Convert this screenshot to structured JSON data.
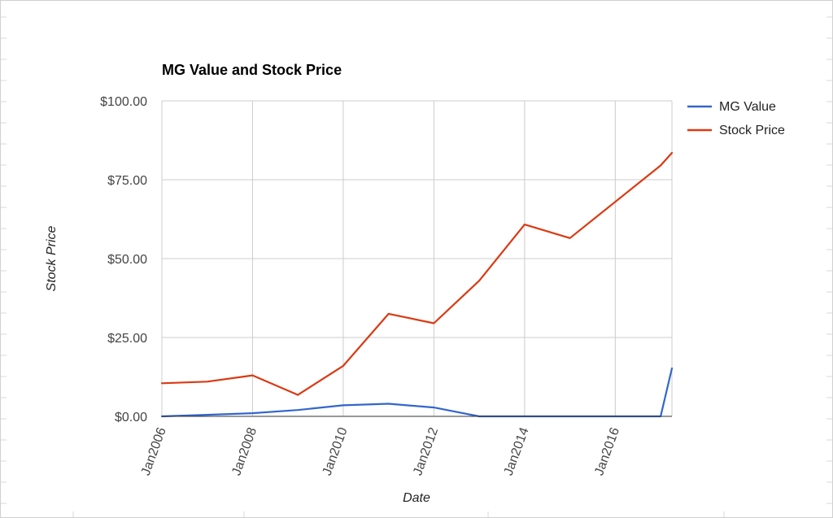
{
  "chart_data": {
    "type": "line",
    "title": "MG Value and Stock Price",
    "xlabel": "Date",
    "ylabel": "Stock Price",
    "x_start": "Jan2006",
    "x_end": "Apr2017",
    "x": [
      "Jan2006",
      "Jan2007",
      "Jan2008",
      "Jan2009",
      "Jan2010",
      "Jan2011",
      "Jan2012",
      "Jan2013",
      "Jan2014",
      "Jan2015",
      "Jan2016",
      "Jan2017",
      "Apr2017"
    ],
    "x_ticks": [
      "Jan2006",
      "Jan2008",
      "Jan2010",
      "Jan2012",
      "Jan2014",
      "Jan2016"
    ],
    "y_ticks": [
      "$0.00",
      "$25.00",
      "$50.00",
      "$75.00",
      "$100.00"
    ],
    "ylim": [
      0,
      100
    ],
    "grid": true,
    "legend_position": "right",
    "series": [
      {
        "name": "MG Value",
        "color": "#3366cc",
        "values": [
          0,
          0.5,
          1,
          2,
          3.5,
          4,
          2.8,
          0,
          0,
          0,
          0,
          0,
          15.2
        ]
      },
      {
        "name": "Stock Price",
        "color": "#dc3912",
        "values": [
          10.5,
          11,
          13,
          6.8,
          16,
          32.5,
          29.5,
          43,
          60.8,
          56.5,
          68,
          79.5,
          83.5
        ]
      }
    ]
  }
}
